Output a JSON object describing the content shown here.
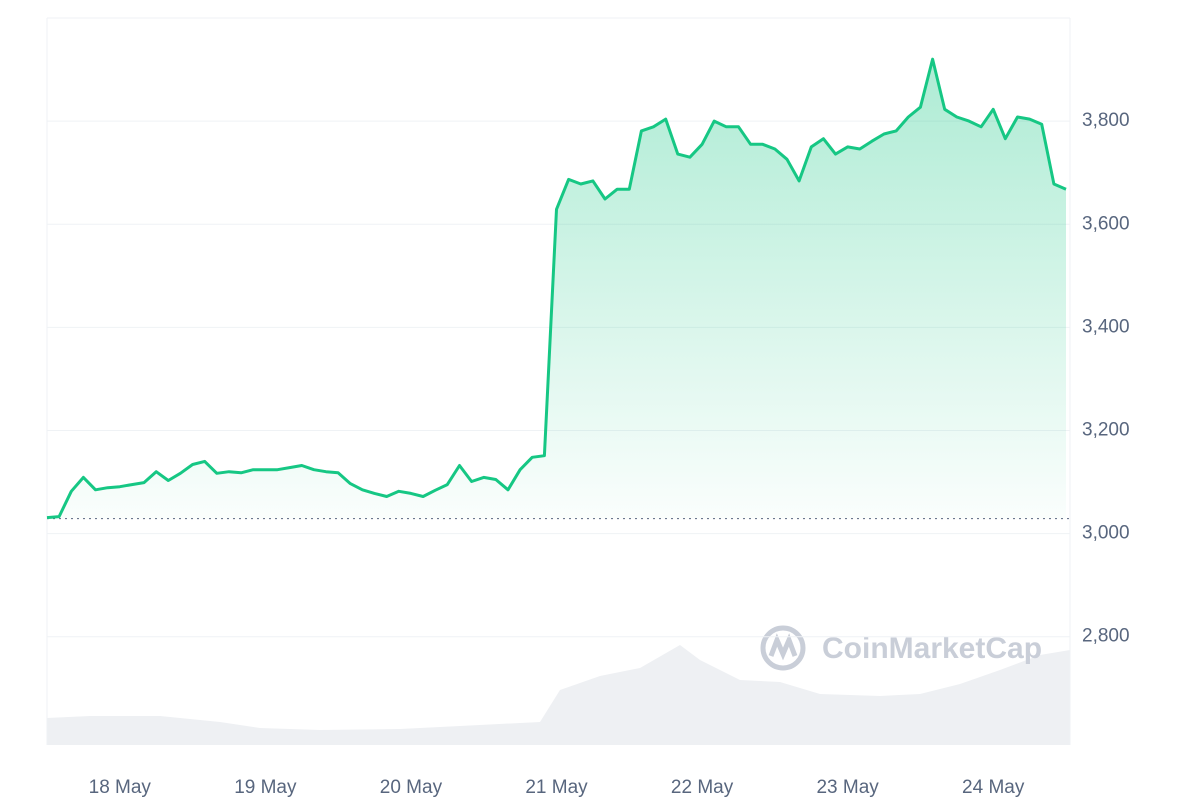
{
  "chart_data": {
    "type": "line",
    "watermark": "CoinMarketCap",
    "categories": [
      null,
      null,
      null,
      null,
      null,
      null,
      "18 May",
      null,
      null,
      null,
      null,
      null,
      null,
      null,
      null,
      null,
      null,
      null,
      "19 May",
      null,
      null,
      null,
      null,
      null,
      null,
      null,
      null,
      null,
      null,
      null,
      "20 May",
      null,
      null,
      null,
      null,
      null,
      null,
      null,
      null,
      null,
      null,
      null,
      "21 May",
      null,
      null,
      null,
      null,
      null,
      null,
      null,
      null,
      null,
      null,
      null,
      "22 May",
      null,
      null,
      null,
      null,
      null,
      null,
      null,
      null,
      null,
      null,
      null,
      "23 May",
      null,
      null,
      null,
      null,
      null,
      null,
      null,
      null,
      null,
      null,
      null,
      "24 May",
      null,
      null,
      null,
      null,
      null,
      null
    ],
    "values": [
      3031,
      3033,
      3082,
      3109,
      3085,
      3089,
      3091,
      3095,
      3099,
      3120,
      3103,
      3117,
      3134,
      3140,
      3117,
      3120,
      3118,
      3124,
      3124,
      3124,
      3128,
      3132,
      3124,
      3120,
      3118,
      3097,
      3085,
      3078,
      3072,
      3082,
      3078,
      3072,
      3084,
      3095,
      3132,
      3101,
      3109,
      3105,
      3085,
      3124,
      3148,
      3151,
      3629,
      3687,
      3678,
      3684,
      3649,
      3668,
      3668,
      3781,
      3789,
      3804,
      3736,
      3730,
      3755,
      3800,
      3789,
      3789,
      3755,
      3755,
      3746,
      3726,
      3684,
      3750,
      3766,
      3736,
      3750,
      3746,
      3761,
      3775,
      3781,
      3808,
      3827,
      3920,
      3823,
      3808,
      3800,
      3789,
      3823,
      3766,
      3808,
      3804,
      3794,
      3678,
      3668
    ],
    "color": "#16c784",
    "baseline": 3029,
    "ylim": [
      2590,
      4000
    ],
    "yticks": [
      {
        "value": 2800,
        "label": "2,800"
      },
      {
        "value": 3000,
        "label": "3,000"
      },
      {
        "value": 3200,
        "label": "3,200"
      },
      {
        "value": 3400,
        "label": "3,400"
      },
      {
        "value": 3600,
        "label": "3,600"
      },
      {
        "value": 3800,
        "label": "3,800"
      }
    ],
    "grid": true
  }
}
